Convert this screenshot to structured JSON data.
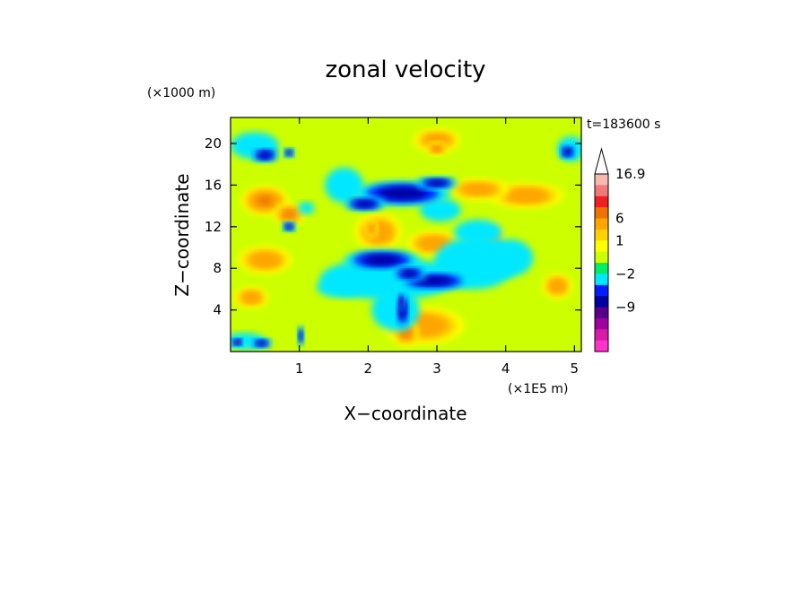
{
  "chart_data": {
    "type": "heatmap",
    "title": "zonal velocity",
    "xlabel": "X−coordinate",
    "ylabel": "Z−coordinate",
    "x_unit": "(×1E5 m)",
    "y_unit": "(×1000 m)",
    "time_label": "t=183600 s",
    "xlim": [
      0,
      5.1
    ],
    "ylim": [
      0,
      22.5
    ],
    "x_ticks": [
      1,
      2,
      3,
      4,
      5
    ],
    "y_ticks": [
      4,
      8,
      12,
      16,
      20
    ],
    "colorbar": {
      "labels": [
        "16.9",
        "6",
        "1",
        "−2",
        "−9"
      ],
      "colors_top_to_bottom": [
        "#f7b8b0",
        "#f07a7a",
        "#ee2020",
        "#ee7300",
        "#ffa500",
        "#ffd200",
        "#ffff00",
        "#ccff00",
        "#00ee66",
        "#00e8ff",
        "#001eff",
        "#0000a0",
        "#58008c",
        "#a000a0",
        "#d81ca8",
        "#ff33cc"
      ]
    },
    "regions": [
      {
        "value": 7,
        "x": 0.5,
        "y": 14.5,
        "rx": 0.35,
        "ry": 1.4
      },
      {
        "value": 7,
        "x": 0.85,
        "y": 13.2,
        "rx": 0.22,
        "ry": 1.0
      },
      {
        "value": 5,
        "x": 0.5,
        "y": 8.8,
        "rx": 0.4,
        "ry": 1.3
      },
      {
        "value": 5,
        "x": 3.0,
        "y": 20.3,
        "rx": 0.35,
        "ry": 1.1
      },
      {
        "value": 7,
        "x": 3.0,
        "y": 19.5,
        "rx": 0.15,
        "ry": 0.6
      },
      {
        "value": 5,
        "x": 4.3,
        "y": 15.0,
        "rx": 0.55,
        "ry": 1.2
      },
      {
        "value": 5,
        "x": 3.6,
        "y": 15.6,
        "rx": 0.45,
        "ry": 1.0
      },
      {
        "value": 5,
        "x": 2.15,
        "y": 11.5,
        "rx": 0.35,
        "ry": 1.8
      },
      {
        "value": 7,
        "x": 2.05,
        "y": 11.8,
        "rx": 0.08,
        "ry": 0.8
      },
      {
        "value": 5,
        "x": 2.95,
        "y": 10.4,
        "rx": 0.4,
        "ry": 1.2
      },
      {
        "value": 5,
        "x": 3.75,
        "y": 10.8,
        "rx": 0.25,
        "ry": 1.6
      },
      {
        "value": 5,
        "x": 2.8,
        "y": 2.5,
        "rx": 0.6,
        "ry": 1.8
      },
      {
        "value": 7,
        "x": 2.55,
        "y": 1.8,
        "rx": 0.18,
        "ry": 1.2
      },
      {
        "value": 5,
        "x": 0.3,
        "y": 5.2,
        "rx": 0.25,
        "ry": 1.0
      },
      {
        "value": 5,
        "x": 4.75,
        "y": 6.3,
        "rx": 0.22,
        "ry": 1.2
      },
      {
        "value": -1,
        "x": 1.65,
        "y": 16.0,
        "rx": 0.28,
        "ry": 1.7
      },
      {
        "value": -1,
        "x": 3.05,
        "y": 13.6,
        "rx": 0.3,
        "ry": 1.1
      },
      {
        "value": -1,
        "x": 3.6,
        "y": 11.5,
        "rx": 0.35,
        "ry": 1.2
      },
      {
        "value": -1,
        "x": 3.55,
        "y": 8.5,
        "rx": 0.6,
        "ry": 2.5
      },
      {
        "value": -1,
        "x": 4.05,
        "y": 9.0,
        "rx": 0.35,
        "ry": 1.8
      },
      {
        "value": -1,
        "x": 2.3,
        "y": 7.0,
        "rx": 1.0,
        "ry": 2.0
      },
      {
        "value": -1,
        "x": 1.6,
        "y": 6.2,
        "rx": 0.35,
        "ry": 1.0
      },
      {
        "value": -1,
        "x": 2.4,
        "y": 4.0,
        "rx": 0.35,
        "ry": 2.0
      },
      {
        "value": -1,
        "x": 0.35,
        "y": 19.8,
        "rx": 0.35,
        "ry": 1.3
      },
      {
        "value": -1,
        "x": 4.95,
        "y": 19.5,
        "rx": 0.2,
        "ry": 1.2
      },
      {
        "value": -1,
        "x": 1.1,
        "y": 13.8,
        "rx": 0.12,
        "ry": 0.6
      },
      {
        "value": -1,
        "x": 0.2,
        "y": 1.0,
        "rx": 0.3,
        "ry": 0.8
      },
      {
        "value": -6,
        "x": 2.5,
        "y": 15.2,
        "rx": 0.7,
        "ry": 1.2
      },
      {
        "value": -6,
        "x": 3.0,
        "y": 16.2,
        "rx": 0.3,
        "ry": 0.6
      },
      {
        "value": -6,
        "x": 1.95,
        "y": 14.2,
        "rx": 0.3,
        "ry": 0.7
      },
      {
        "value": -6,
        "x": 2.2,
        "y": 8.8,
        "rx": 0.55,
        "ry": 1.0
      },
      {
        "value": -6,
        "x": 2.95,
        "y": 6.8,
        "rx": 0.55,
        "ry": 0.9
      },
      {
        "value": -6,
        "x": 2.6,
        "y": 7.5,
        "rx": 0.25,
        "ry": 0.7
      },
      {
        "value": -6,
        "x": 2.5,
        "y": 4.0,
        "rx": 0.1,
        "ry": 1.8
      },
      {
        "value": -6,
        "x": 0.5,
        "y": 18.9,
        "rx": 0.2,
        "ry": 0.7
      },
      {
        "value": -6,
        "x": 0.85,
        "y": 19.1,
        "rx": 0.08,
        "ry": 0.5
      },
      {
        "value": -6,
        "x": 4.9,
        "y": 19.2,
        "rx": 0.12,
        "ry": 0.7
      },
      {
        "value": -6,
        "x": 0.85,
        "y": 12.0,
        "rx": 0.1,
        "ry": 0.5
      },
      {
        "value": -6,
        "x": 0.45,
        "y": 0.8,
        "rx": 0.15,
        "ry": 0.5
      },
      {
        "value": -6,
        "x": 1.02,
        "y": 1.5,
        "rx": 0.05,
        "ry": 1.0
      },
      {
        "value": -10,
        "x": 2.48,
        "y": 4.8,
        "rx": 0.04,
        "ry": 0.8
      },
      {
        "value": -10,
        "x": 0.1,
        "y": 0.9,
        "rx": 0.08,
        "ry": 0.4
      }
    ]
  }
}
